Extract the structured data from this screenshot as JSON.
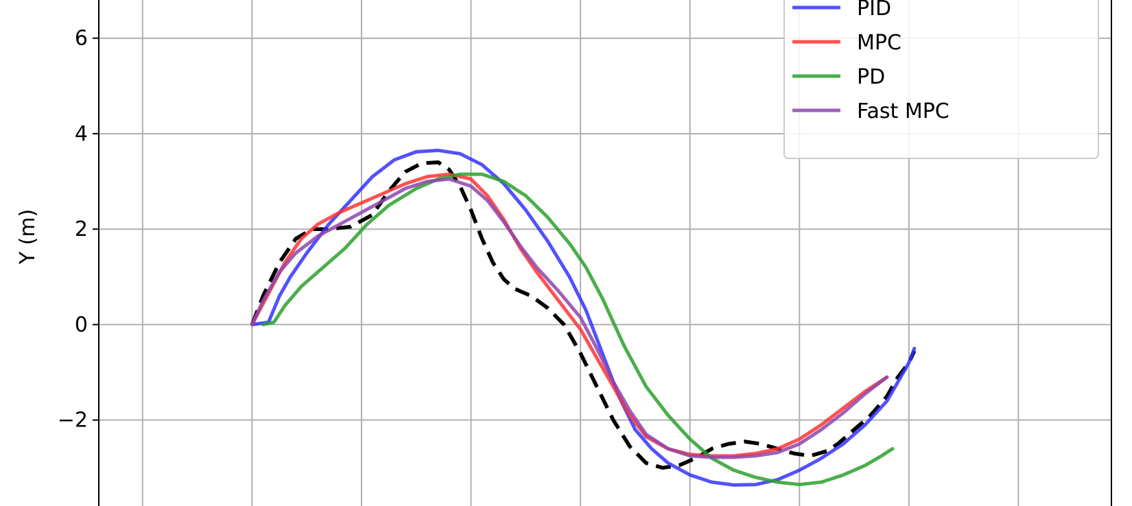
{
  "chart_data": {
    "type": "line",
    "title": "",
    "xlabel": "",
    "ylabel": "Y (m)",
    "grid": true,
    "legend_placement": "top-right",
    "xlim": [
      -5.4,
      3.85
    ],
    "ylim": [
      -3.8,
      6.8
    ],
    "x_gridlines": [
      -5,
      -4,
      -3,
      -2,
      -1,
      0,
      1,
      2,
      3
    ],
    "yticks": [
      -2,
      0,
      2,
      4,
      6
    ],
    "ytick_labels": [
      "−2",
      "0",
      "2",
      "4",
      "6"
    ],
    "series": [
      {
        "name": "",
        "color": "#000000",
        "dashed": true,
        "x": [
          -4.0,
          -3.9,
          -3.75,
          -3.6,
          -3.45,
          -3.3,
          -3.1,
          -2.9,
          -2.75,
          -2.6,
          -2.45,
          -2.3,
          -2.2,
          -2.1,
          -2.0,
          -1.9,
          -1.8,
          -1.7,
          -1.6,
          -1.45,
          -1.3,
          -1.15,
          -1.0,
          -0.85,
          -0.7,
          -0.55,
          -0.4,
          -0.25,
          -0.1,
          0.05,
          0.2,
          0.35,
          0.5,
          0.65,
          0.8,
          0.95,
          1.1,
          1.25,
          1.35,
          1.5,
          1.65,
          1.8,
          1.9,
          2.0,
          2.05
        ],
        "y": [
          0.0,
          0.6,
          1.3,
          1.8,
          2.0,
          2.0,
          2.05,
          2.3,
          2.8,
          3.2,
          3.38,
          3.4,
          3.25,
          2.9,
          2.4,
          1.8,
          1.3,
          0.95,
          0.75,
          0.6,
          0.35,
          0.0,
          -0.6,
          -1.3,
          -2.0,
          -2.55,
          -2.9,
          -3.0,
          -2.95,
          -2.8,
          -2.6,
          -2.5,
          -2.45,
          -2.5,
          -2.6,
          -2.7,
          -2.75,
          -2.65,
          -2.5,
          -2.2,
          -1.9,
          -1.5,
          -1.1,
          -0.8,
          -0.55
        ]
      },
      {
        "name": "PID",
        "color": "#3333ff",
        "dashed": false,
        "x": [
          -4.0,
          -3.85,
          -3.75,
          -3.65,
          -3.5,
          -3.3,
          -3.1,
          -2.9,
          -2.7,
          -2.5,
          -2.3,
          -2.1,
          -1.9,
          -1.7,
          -1.5,
          -1.3,
          -1.1,
          -0.95,
          -0.8,
          -0.65,
          -0.5,
          -0.35,
          -0.2,
          0.0,
          0.2,
          0.4,
          0.6,
          0.8,
          1.0,
          1.2,
          1.4,
          1.6,
          1.8,
          1.9,
          2.0,
          2.05
        ],
        "y": [
          0.0,
          0.05,
          0.6,
          1.0,
          1.5,
          2.1,
          2.6,
          3.1,
          3.45,
          3.62,
          3.65,
          3.58,
          3.35,
          2.95,
          2.4,
          1.75,
          1.0,
          0.3,
          -0.6,
          -1.5,
          -2.2,
          -2.6,
          -2.9,
          -3.15,
          -3.3,
          -3.36,
          -3.35,
          -3.25,
          -3.05,
          -2.8,
          -2.5,
          -2.1,
          -1.6,
          -1.2,
          -0.8,
          -0.5
        ]
      },
      {
        "name": "MPC",
        "color": "#ff3333",
        "dashed": false,
        "x": [
          -4.0,
          -3.85,
          -3.7,
          -3.55,
          -3.4,
          -3.2,
          -3.0,
          -2.8,
          -2.6,
          -2.4,
          -2.2,
          -2.0,
          -1.85,
          -1.7,
          -1.55,
          -1.4,
          -1.2,
          -1.0,
          -0.85,
          -0.7,
          -0.55,
          -0.4,
          -0.2,
          0.0,
          0.2,
          0.4,
          0.6,
          0.8,
          1.0,
          1.2,
          1.4,
          1.6,
          1.8
        ],
        "y": [
          0.0,
          0.65,
          1.3,
          1.8,
          2.1,
          2.35,
          2.55,
          2.75,
          2.95,
          3.1,
          3.15,
          3.05,
          2.7,
          2.2,
          1.6,
          1.1,
          0.5,
          -0.1,
          -0.7,
          -1.3,
          -1.9,
          -2.35,
          -2.6,
          -2.72,
          -2.75,
          -2.75,
          -2.7,
          -2.6,
          -2.4,
          -2.1,
          -1.75,
          -1.4,
          -1.1
        ]
      },
      {
        "name": "PD",
        "color": "#2ca02c",
        "dashed": false,
        "x": [
          -3.9,
          -3.8,
          -3.7,
          -3.55,
          -3.35,
          -3.15,
          -2.95,
          -2.75,
          -2.5,
          -2.3,
          -2.1,
          -1.9,
          -1.7,
          -1.5,
          -1.3,
          -1.1,
          -0.95,
          -0.8,
          -0.6,
          -0.4,
          -0.2,
          0.0,
          0.2,
          0.4,
          0.6,
          0.8,
          1.0,
          1.2,
          1.4,
          1.6,
          1.75,
          1.85
        ],
        "y": [
          0.0,
          0.05,
          0.4,
          0.8,
          1.2,
          1.6,
          2.1,
          2.5,
          2.85,
          3.05,
          3.15,
          3.15,
          3.0,
          2.7,
          2.25,
          1.7,
          1.2,
          0.55,
          -0.45,
          -1.3,
          -1.9,
          -2.4,
          -2.8,
          -3.05,
          -3.2,
          -3.3,
          -3.35,
          -3.3,
          -3.15,
          -2.95,
          -2.75,
          -2.6
        ]
      },
      {
        "name": "Fast MPC",
        "color": "#8e44ad",
        "dashed": false,
        "x": [
          -4.0,
          -3.9,
          -3.75,
          -3.6,
          -3.4,
          -3.2,
          -3.0,
          -2.8,
          -2.6,
          -2.4,
          -2.2,
          -2.0,
          -1.85,
          -1.7,
          -1.55,
          -1.4,
          -1.2,
          -1.0,
          -0.85,
          -0.7,
          -0.55,
          -0.4,
          -0.2,
          0.0,
          0.2,
          0.4,
          0.6,
          0.8,
          1.0,
          1.2,
          1.4,
          1.6,
          1.8
        ],
        "y": [
          0.0,
          0.5,
          1.1,
          1.5,
          1.85,
          2.1,
          2.35,
          2.6,
          2.85,
          3.0,
          3.05,
          2.9,
          2.6,
          2.15,
          1.65,
          1.2,
          0.7,
          0.15,
          -0.5,
          -1.2,
          -1.8,
          -2.3,
          -2.6,
          -2.75,
          -2.78,
          -2.78,
          -2.75,
          -2.68,
          -2.5,
          -2.2,
          -1.85,
          -1.45,
          -1.1
        ]
      }
    ]
  }
}
